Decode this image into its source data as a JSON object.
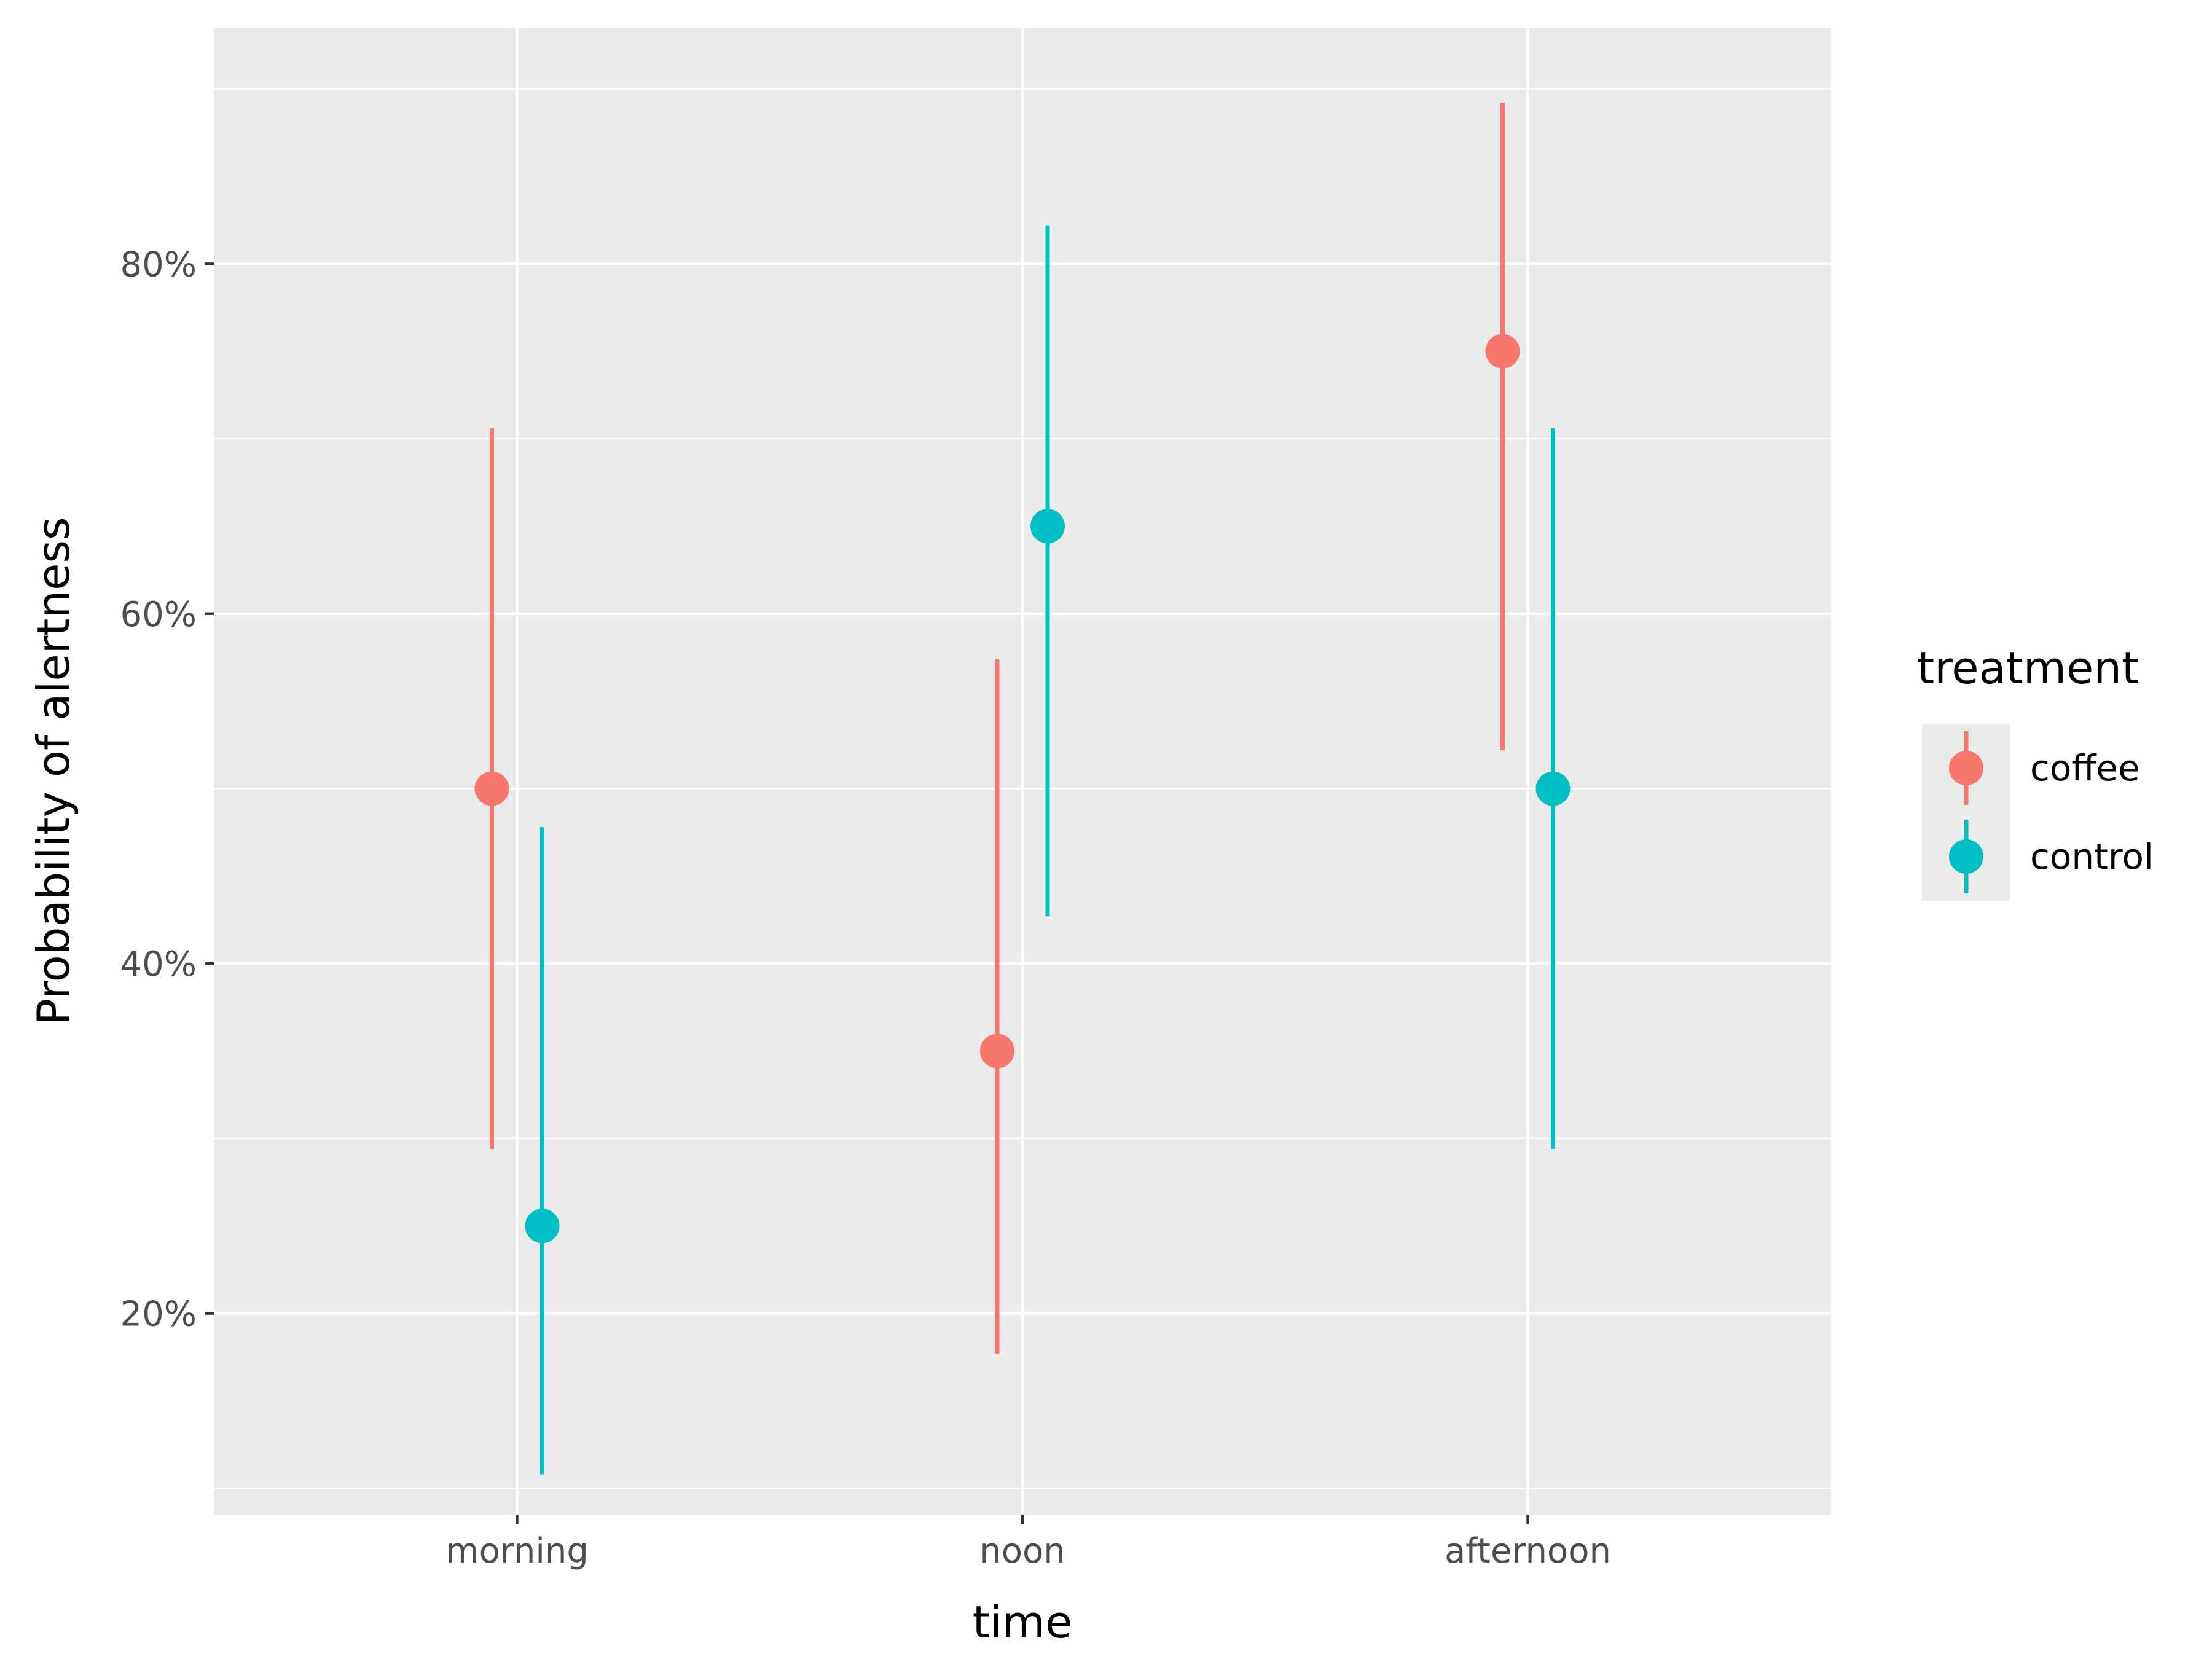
{
  "chart_data": {
    "type": "scatter",
    "subtype": "pointrange",
    "title": "",
    "xlabel": "time",
    "ylabel": "Probability of alertness",
    "categories": [
      "morning",
      "noon",
      "afternoon"
    ],
    "ylim": [
      0.085,
      0.935
    ],
    "yticks": [
      0.2,
      0.4,
      0.6,
      0.8
    ],
    "ytick_labels": [
      "20%",
      "40%",
      "60%",
      "80%"
    ],
    "grid": true,
    "legend": {
      "title": "treatment",
      "position": "right"
    },
    "series": [
      {
        "name": "coffee",
        "color": "#F8766D",
        "values": [
          0.5,
          0.35,
          0.75
        ],
        "lower": [
          0.294,
          0.177,
          0.522
        ],
        "upper": [
          0.706,
          0.574,
          0.892
        ]
      },
      {
        "name": "control",
        "color": "#00BFC4",
        "values": [
          0.25,
          0.65,
          0.5
        ],
        "lower": [
          0.108,
          0.427,
          0.294
        ],
        "upper": [
          0.478,
          0.822,
          0.706
        ]
      }
    ]
  }
}
